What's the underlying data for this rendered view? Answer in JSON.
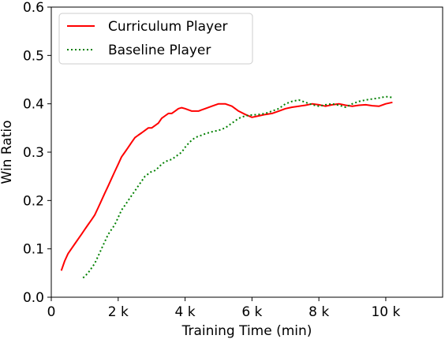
{
  "chart_data": {
    "type": "line",
    "title": "",
    "xlabel": "Training Time (min)",
    "ylabel": "Win Ratio",
    "xlim": [
      0,
      11700
    ],
    "ylim": [
      0,
      0.6
    ],
    "x_ticks": [
      0,
      2000,
      4000,
      6000,
      8000,
      10000
    ],
    "x_tick_labels": [
      "0",
      "2 k",
      "4 k",
      "6 k",
      "8 k",
      "10 k"
    ],
    "y_ticks": [
      0.0,
      0.1,
      0.2,
      0.3,
      0.4,
      0.5,
      0.6
    ],
    "y_tick_labels": [
      "0.0",
      "0.1",
      "0.2",
      "0.3",
      "0.4",
      "0.5",
      "0.6"
    ],
    "grid": false,
    "legend_position": "top-left",
    "series": [
      {
        "name": "Curriculum Player",
        "color": "#ff0000",
        "style": "solid",
        "x": [
          300,
          400,
          500,
          600,
          700,
          800,
          900,
          1000,
          1100,
          1200,
          1300,
          1400,
          1500,
          1600,
          1700,
          1800,
          1900,
          2000,
          2100,
          2200,
          2300,
          2400,
          2500,
          2600,
          2700,
          2800,
          2900,
          3000,
          3100,
          3200,
          3300,
          3400,
          3500,
          3600,
          3700,
          3800,
          3900,
          4000,
          4200,
          4400,
          4600,
          4800,
          5000,
          5200,
          5400,
          5600,
          5800,
          6000,
          6200,
          6400,
          6600,
          6800,
          7000,
          7200,
          7400,
          7600,
          7800,
          8000,
          8200,
          8400,
          8600,
          8800,
          9000,
          9200,
          9400,
          9600,
          9800,
          10000,
          10200
        ],
        "values": [
          0.055,
          0.075,
          0.09,
          0.1,
          0.11,
          0.12,
          0.13,
          0.14,
          0.15,
          0.16,
          0.17,
          0.185,
          0.2,
          0.215,
          0.23,
          0.245,
          0.26,
          0.275,
          0.29,
          0.3,
          0.31,
          0.32,
          0.33,
          0.335,
          0.34,
          0.345,
          0.35,
          0.35,
          0.355,
          0.36,
          0.37,
          0.375,
          0.38,
          0.38,
          0.385,
          0.39,
          0.392,
          0.39,
          0.385,
          0.385,
          0.39,
          0.395,
          0.4,
          0.4,
          0.395,
          0.385,
          0.378,
          0.372,
          0.375,
          0.378,
          0.38,
          0.385,
          0.39,
          0.393,
          0.395,
          0.397,
          0.4,
          0.398,
          0.395,
          0.398,
          0.4,
          0.397,
          0.395,
          0.397,
          0.398,
          0.396,
          0.395,
          0.4,
          0.403
        ]
      },
      {
        "name": "Baseline Player",
        "color": "#008000",
        "style": "dotted",
        "x": [
          950,
          1100,
          1200,
          1300,
          1400,
          1500,
          1600,
          1700,
          1800,
          1900,
          2000,
          2100,
          2200,
          2300,
          2400,
          2500,
          2600,
          2700,
          2800,
          2900,
          3000,
          3100,
          3200,
          3300,
          3400,
          3500,
          3600,
          3700,
          3800,
          3900,
          4000,
          4100,
          4200,
          4300,
          4400,
          4500,
          4600,
          4800,
          5000,
          5200,
          5400,
          5600,
          5800,
          6000,
          6200,
          6400,
          6600,
          6800,
          7000,
          7200,
          7400,
          7600,
          7800,
          8000,
          8200,
          8400,
          8600,
          8800,
          9000,
          9200,
          9400,
          9600,
          9800,
          10000,
          10200
        ],
        "values": [
          0.04,
          0.05,
          0.06,
          0.07,
          0.085,
          0.1,
          0.115,
          0.13,
          0.14,
          0.15,
          0.165,
          0.18,
          0.19,
          0.2,
          0.21,
          0.22,
          0.23,
          0.24,
          0.25,
          0.255,
          0.26,
          0.262,
          0.268,
          0.275,
          0.28,
          0.283,
          0.285,
          0.29,
          0.295,
          0.3,
          0.31,
          0.318,
          0.325,
          0.33,
          0.333,
          0.335,
          0.338,
          0.342,
          0.345,
          0.35,
          0.36,
          0.37,
          0.375,
          0.377,
          0.378,
          0.38,
          0.385,
          0.39,
          0.4,
          0.405,
          0.408,
          0.403,
          0.398,
          0.395,
          0.398,
          0.4,
          0.397,
          0.393,
          0.4,
          0.405,
          0.408,
          0.41,
          0.412,
          0.415,
          0.413
        ]
      }
    ]
  }
}
